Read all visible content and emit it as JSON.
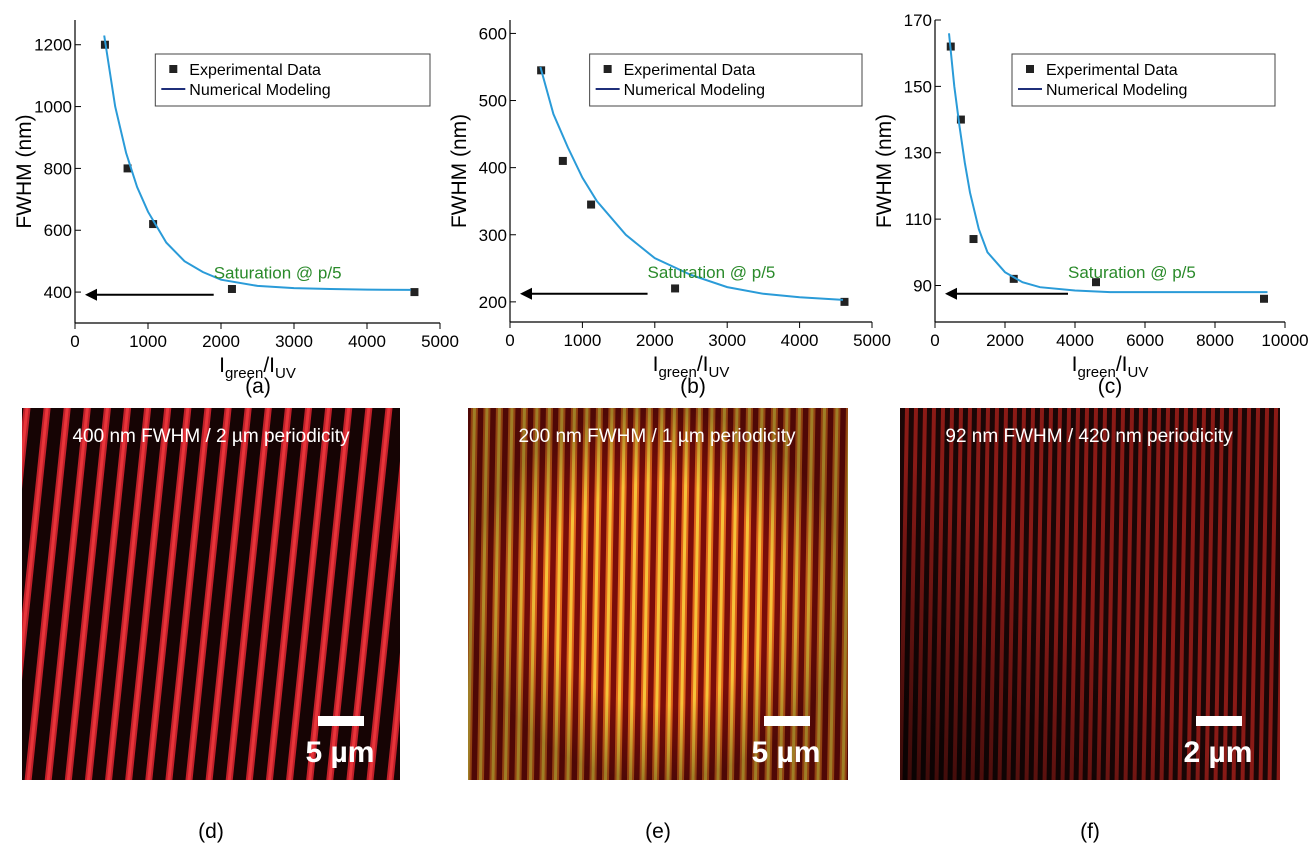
{
  "chart_data": [
    {
      "type": "scatter",
      "y_label": "FWHM (nm)",
      "x_label": [
        "I",
        "green",
        "/I",
        "UV"
      ],
      "annotation": "Saturation @ p/5",
      "legend": "upper right",
      "xlim": [
        0,
        5000
      ],
      "xticks": [
        0,
        1000,
        2000,
        3000,
        4000,
        5000
      ],
      "ylim": [
        300,
        1280
      ],
      "yticks": [
        400,
        600,
        800,
        1000,
        1200
      ],
      "series": [
        {
          "name": "Experimental Data",
          "style": "markers",
          "color": "#222222",
          "x": [
            410,
            720,
            1070,
            2150,
            4650
          ],
          "values": [
            1200,
            800,
            620,
            410,
            400
          ]
        },
        {
          "name": "Numerical Modeling",
          "style": "line",
          "color": "#2a9bd8",
          "x": [
            400,
            550,
            700,
            850,
            1000,
            1250,
            1500,
            1750,
            2000,
            2500,
            3000,
            3500,
            4000,
            4600
          ],
          "values": [
            1230,
            1000,
            850,
            740,
            660,
            560,
            500,
            465,
            440,
            420,
            413,
            410,
            408,
            407
          ]
        }
      ]
    },
    {
      "type": "scatter",
      "y_label": "FWHM (nm)",
      "x_label": [
        "I",
        "green",
        "/I",
        "UV"
      ],
      "annotation": "Saturation @ p/5",
      "legend": "upper right",
      "xlim": [
        0,
        5000
      ],
      "xticks": [
        0,
        1000,
        2000,
        3000,
        4000,
        5000
      ],
      "ylim": [
        170,
        620
      ],
      "yticks": [
        200,
        300,
        400,
        500,
        600
      ],
      "series": [
        {
          "name": "Experimental Data",
          "style": "markers",
          "color": "#222222",
          "x": [
            430,
            730,
            1120,
            2280,
            4620
          ],
          "values": [
            545,
            410,
            345,
            220,
            200
          ]
        },
        {
          "name": "Numerical Modeling",
          "style": "line",
          "color": "#2a9bd8",
          "x": [
            420,
            600,
            800,
            1000,
            1200,
            1600,
            2000,
            2500,
            3000,
            3500,
            4000,
            4600
          ],
          "values": [
            550,
            480,
            430,
            385,
            350,
            300,
            265,
            240,
            222,
            212,
            207,
            203
          ]
        }
      ]
    },
    {
      "type": "scatter",
      "y_label": "FWHM (nm)",
      "x_label": [
        "I",
        "green",
        "/I",
        "UV"
      ],
      "annotation": "Saturation @ p/5",
      "legend": "upper right",
      "xlim": [
        0,
        10000
      ],
      "xticks": [
        0,
        2000,
        4000,
        6000,
        8000,
        10000
      ],
      "ylim": [
        79,
        170
      ],
      "yticks": [
        90,
        110,
        130,
        150,
        170
      ],
      "series": [
        {
          "name": "Experimental Data",
          "style": "markers",
          "color": "#222222",
          "x": [
            450,
            740,
            1100,
            2250,
            4600,
            9400
          ],
          "values": [
            162,
            140,
            104,
            92,
            91,
            86
          ]
        },
        {
          "name": "Numerical Modeling",
          "style": "line",
          "color": "#2a9bd8",
          "x": [
            400,
            550,
            700,
            850,
            1000,
            1250,
            1500,
            2000,
            2500,
            3000,
            4000,
            5000,
            7000,
            9500
          ],
          "values": [
            166,
            150,
            138,
            127,
            118,
            107,
            100,
            94,
            91,
            89.5,
            88.5,
            88,
            88,
            88
          ]
        }
      ]
    }
  ],
  "captions": [
    "(a)",
    "(b)",
    "(c)",
    "(d)",
    "(e)",
    "(f)"
  ],
  "images": [
    {
      "title": "400 nm FWHM / 2 µm periodicity",
      "scale_bar": "5 µm"
    },
    {
      "title": "200 nm FWHM / 1 µm periodicity",
      "scale_bar": "5 µm"
    },
    {
      "title": "92 nm FWHM / 420 nm periodicity",
      "scale_bar": "2 µm"
    }
  ]
}
